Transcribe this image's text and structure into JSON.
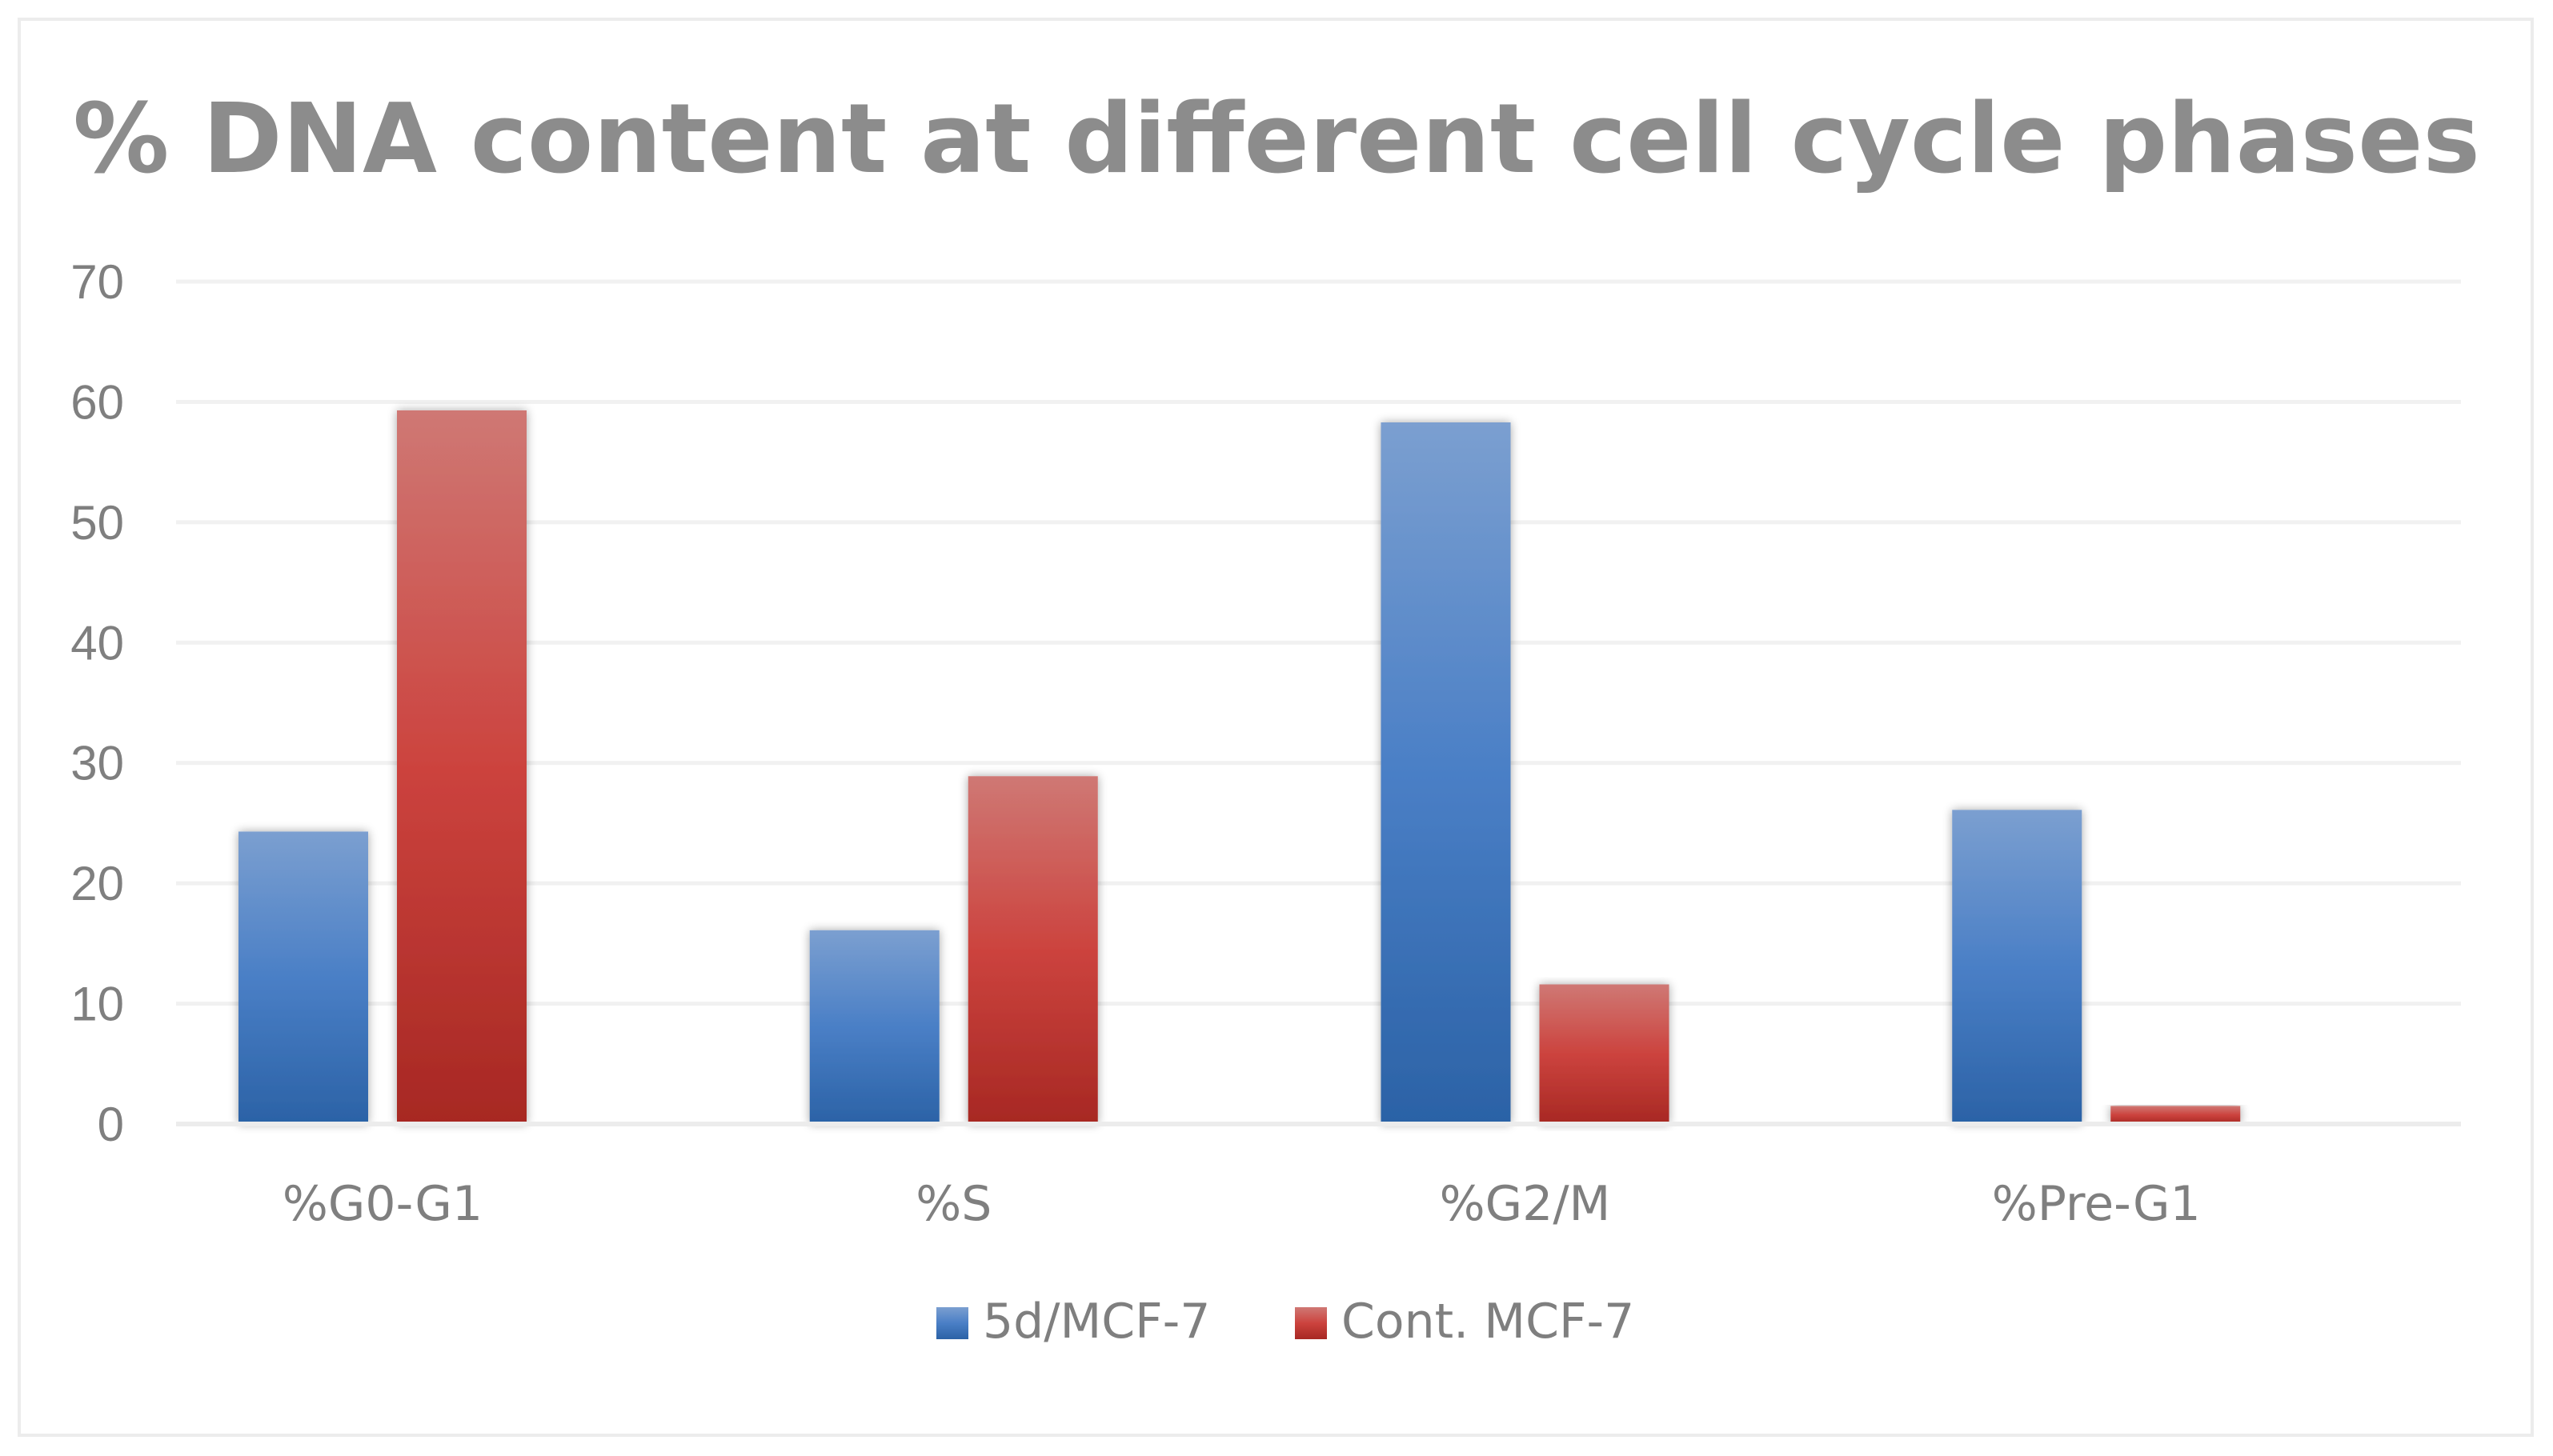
{
  "chart_data": {
    "type": "bar",
    "title": "% DNA content at different cell cycle phases",
    "xlabel": "",
    "ylabel": "",
    "ylim": [
      0,
      70
    ],
    "yticks": [
      0,
      10,
      20,
      30,
      40,
      50,
      60,
      70
    ],
    "categories": [
      "%G0-G1",
      "%S",
      "%G2/M",
      "%Pre-G1"
    ],
    "series": [
      {
        "name": "5d/MCF-7",
        "values": [
          24.3,
          16.1,
          58.3,
          26.1
        ],
        "color_top": "#7b9fd0",
        "color_mid": "#4a7fc6",
        "color_bottom": "#2b62a6"
      },
      {
        "name": "Cont. MCF-7",
        "values": [
          59.3,
          28.9,
          11.6,
          1.5
        ],
        "color_top": "#cf7874",
        "color_mid": "#cc433e",
        "color_bottom": "#a72823"
      }
    ],
    "grid": true,
    "legend_position": "bottom-center"
  }
}
